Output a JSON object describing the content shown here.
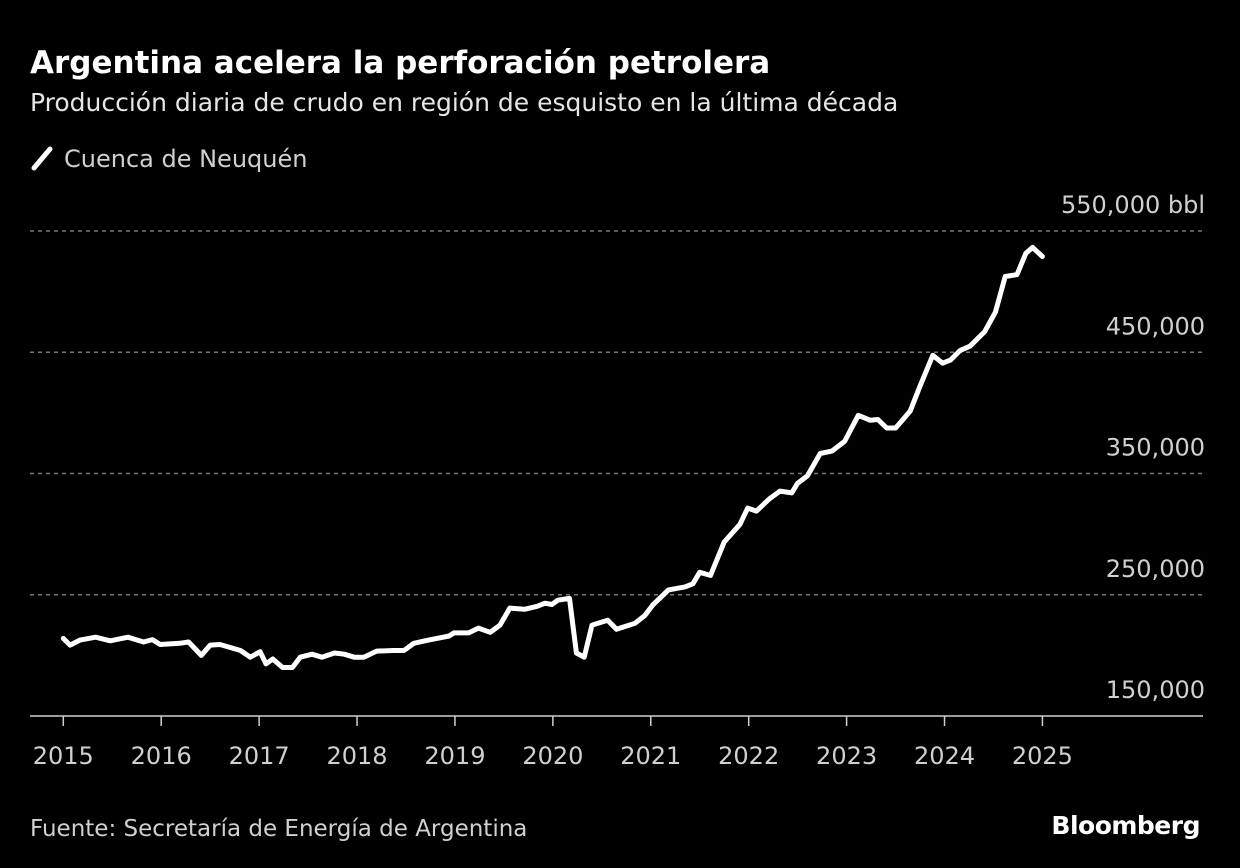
{
  "title": "Argentina acelera la perforación petrolera",
  "subtitle": "Producción diaria de crudo en región de esquisto en la última década",
  "source": "Fuente: Secretaría de Energía de Argentina",
  "brand": "Bloomberg",
  "chart_data": {
    "type": "line",
    "x": [
      2015.0,
      2015.07,
      2015.17,
      2015.33,
      2015.48,
      2015.66,
      2015.82,
      2015.91,
      2015.99,
      2016.19,
      2016.28,
      2016.41,
      2016.5,
      2016.6,
      2016.81,
      2016.91,
      2017.01,
      2017.07,
      2017.14,
      2017.24,
      2017.34,
      2017.42,
      2017.54,
      2017.64,
      2017.77,
      2017.87,
      2017.97,
      2018.07,
      2018.2,
      2018.37,
      2018.48,
      2018.58,
      2018.73,
      2018.94,
      2018.99,
      2019.14,
      2019.24,
      2019.36,
      2019.46,
      2019.56,
      2019.71,
      2019.84,
      2019.92,
      2019.99,
      2020.05,
      2020.17,
      2020.24,
      2020.32,
      2020.4,
      2020.56,
      2020.65,
      2020.84,
      2020.94,
      2021.02,
      2021.18,
      2021.35,
      2021.43,
      2021.5,
      2021.61,
      2021.75,
      2021.91,
      2021.99,
      2022.08,
      2022.21,
      2022.32,
      2022.44,
      2022.5,
      2022.6,
      2022.73,
      2022.85,
      2022.98,
      2023.12,
      2023.24,
      2023.32,
      2023.41,
      2023.5,
      2023.65,
      2023.75,
      2023.88,
      2023.98,
      2024.06,
      2024.16,
      2024.26,
      2024.41,
      2024.52,
      2024.62,
      2024.74,
      2024.83,
      2024.9,
      2025.0
    ],
    "series": [
      {
        "name": "Cuenca de Neuquén",
        "color": "#ffffff",
        "values": [
          214000,
          208500,
          212600,
          215000,
          212000,
          215000,
          211000,
          213000,
          209000,
          210000,
          211000,
          200000,
          208500,
          209000,
          204000,
          198500,
          203000,
          193000,
          197000,
          190000,
          190000,
          198500,
          201000,
          198500,
          202000,
          201000,
          198500,
          198500,
          203500,
          204000,
          204000,
          210000,
          212600,
          216000,
          218500,
          218500,
          222500,
          219000,
          225000,
          239000,
          238000,
          240500,
          243000,
          242000,
          245500,
          247000,
          202000,
          198500,
          225000,
          229000,
          221500,
          226500,
          233000,
          241500,
          254000,
          256500,
          259000,
          268500,
          266000,
          293500,
          308000,
          321500,
          319000,
          329000,
          335500,
          334000,
          342000,
          348000,
          366500,
          368500,
          376500,
          398000,
          394000,
          394500,
          387500,
          387500,
          401500,
          422000,
          447500,
          441000,
          443500,
          451500,
          455000,
          467000,
          483000,
          512500,
          514000,
          531500,
          536500,
          529000
        ]
      }
    ],
    "xlim": [
      2014.66,
      2026.64
    ],
    "xticks": [
      2015,
      2016,
      2017,
      2018,
      2019,
      2020,
      2021,
      2022,
      2023,
      2024,
      2025
    ],
    "ylim": [
      150000,
      550000
    ],
    "yticks": [
      {
        "value": 150000,
        "label": "150,000"
      },
      {
        "value": 250000,
        "label": "250,000"
      },
      {
        "value": 350000,
        "label": "350,000"
      },
      {
        "value": 450000,
        "label": "450,000"
      },
      {
        "value": 550000,
        "label": "550,000 bbl"
      }
    ],
    "grid": true
  }
}
